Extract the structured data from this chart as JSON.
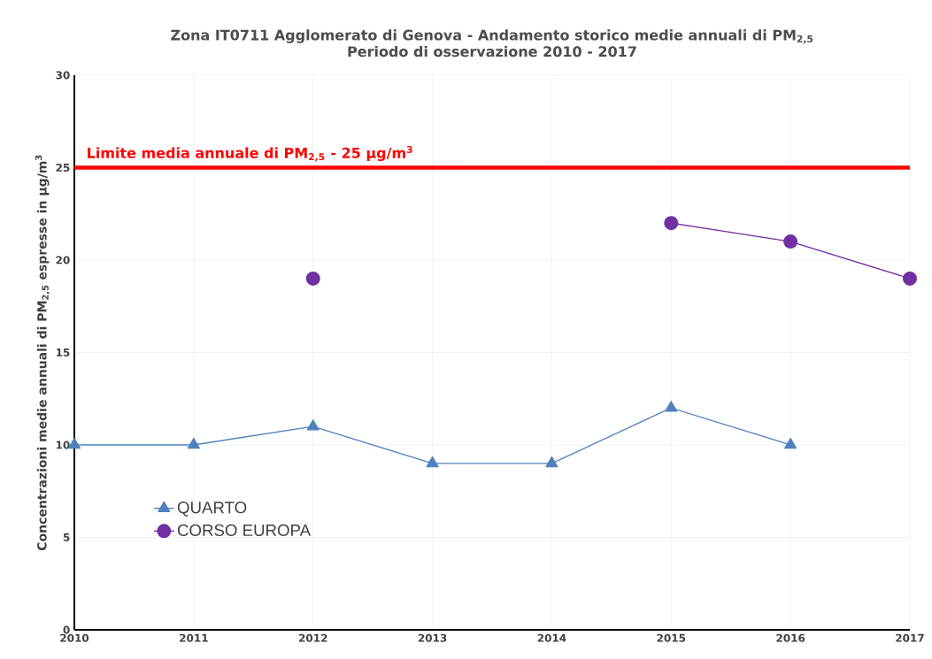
{
  "chart_data": {
    "type": "line",
    "title": "Zona IT0711 Agglomerato di Genova - Andamento storico medie annuali di PM$_{2,5}$",
    "subtitle": "Periodo di osservazione 2010 - 2017",
    "ylabel": "Concentrazioni medie annuali di PM$_{2,5}$ espresse in µg/m$^{3}$",
    "x": [
      2010,
      2011,
      2012,
      2013,
      2014,
      2015,
      2016,
      2017
    ],
    "series": [
      {
        "name": "QUARTO",
        "color": "#4f81bd",
        "marker": "triangle",
        "values": [
          10,
          10,
          11,
          9,
          9,
          12,
          10,
          null
        ]
      },
      {
        "name": "CORSO EUROPA",
        "color": "#7030a0",
        "marker": "circle",
        "values": [
          null,
          null,
          19,
          null,
          null,
          22,
          21,
          19
        ]
      }
    ],
    "xlim": [
      2010,
      2017
    ],
    "xticks": [
      2010,
      2011,
      2012,
      2013,
      2014,
      2015,
      2016,
      2017
    ],
    "ylim": [
      0,
      30
    ],
    "yticks": [
      0,
      5,
      10,
      15,
      20,
      25,
      30
    ],
    "ref_lines": [
      {
        "axis": "y",
        "value": 25,
        "label": "Limite media annuale di PM$_{2,5}$ - 25 µg/m$^{3}$",
        "color": "#ff0000"
      }
    ],
    "grid": true,
    "legend": "bottom left",
    "line_style": "solid"
  }
}
